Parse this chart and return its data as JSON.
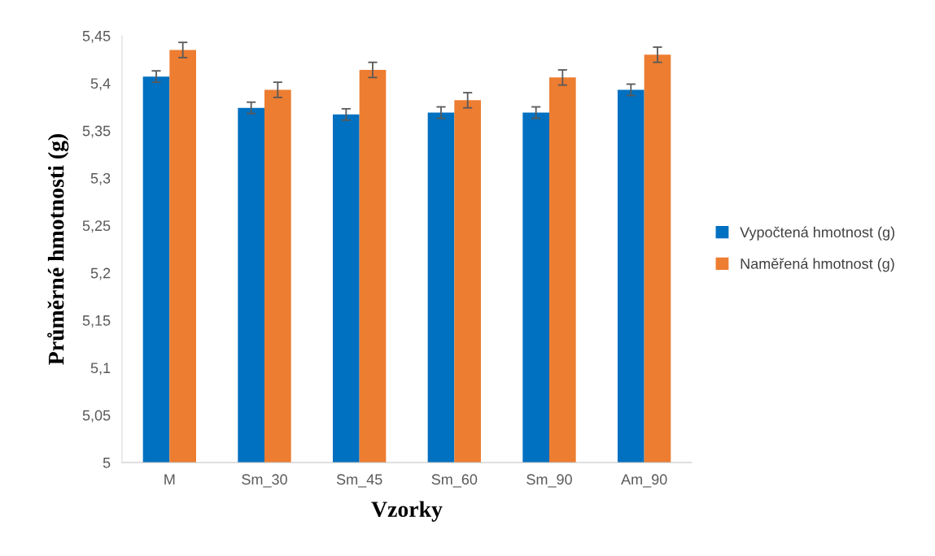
{
  "chart_data": {
    "type": "bar",
    "xlabel": "Vzorky",
    "ylabel": "Průměrné hmotnosti (g)",
    "categories": [
      "M",
      "Sm_30",
      "Sm_45",
      "Sm_60",
      "Sm_90",
      "Am_90"
    ],
    "series": [
      {
        "name": "Vypočtená hmotnost (g)",
        "color": "#0070c0",
        "values": [
          5.407,
          5.374,
          5.367,
          5.369,
          5.369,
          5.393
        ],
        "errors": [
          0.006,
          0.006,
          0.006,
          0.006,
          0.006,
          0.006
        ]
      },
      {
        "name": "Naměřená hmotnost (g)",
        "color": "#ed7d31",
        "values": [
          5.435,
          5.393,
          5.414,
          5.382,
          5.406,
          5.43
        ],
        "errors": [
          0.008,
          0.008,
          0.008,
          0.008,
          0.008,
          0.008
        ]
      }
    ],
    "ylim": [
      5,
      5.45
    ],
    "yticks": [
      {
        "value": 5,
        "label": "5"
      },
      {
        "value": 5.05,
        "label": "5,05"
      },
      {
        "value": 5.1,
        "label": "5,1"
      },
      {
        "value": 5.15,
        "label": "5,15"
      },
      {
        "value": 5.2,
        "label": "5,2"
      },
      {
        "value": 5.25,
        "label": "5,25"
      },
      {
        "value": 5.3,
        "label": "5,3"
      },
      {
        "value": 5.35,
        "label": "5,35"
      },
      {
        "value": 5.4,
        "label": "5,4"
      },
      {
        "value": 5.45,
        "label": "5,45"
      }
    ],
    "grid": false,
    "legend": "right"
  }
}
